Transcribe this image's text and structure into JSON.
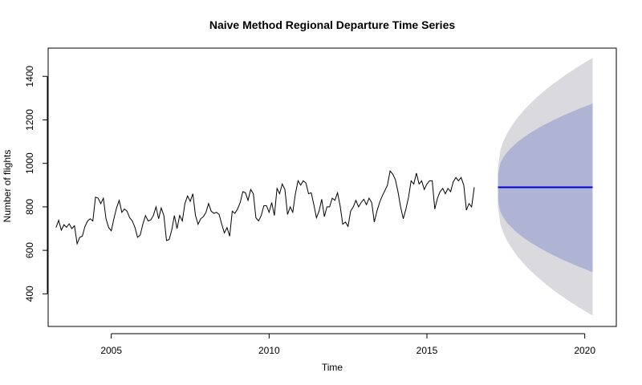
{
  "chart_data": {
    "type": "line",
    "title": "Naive Method Regional Departure Time Series",
    "xlabel": "Time",
    "ylabel": "Number of flights",
    "xlim": [
      2003.0,
      2021.0
    ],
    "ylim": [
      250,
      1530
    ],
    "x_ticks": [
      2005,
      2010,
      2015,
      2020
    ],
    "y_ticks": [
      400,
      600,
      800,
      1000,
      1200,
      1400
    ],
    "grid": false,
    "legend": "none",
    "series": [
      {
        "kind": "observed",
        "color": "#000000",
        "start": 2003.25,
        "step": 0.0833333,
        "values": [
          705,
          738,
          693,
          718,
          706,
          722,
          700,
          713,
          630,
          660,
          665,
          710,
          735,
          745,
          735,
          845,
          840,
          815,
          840,
          745,
          705,
          690,
          745,
          795,
          830,
          775,
          790,
          780,
          750,
          735,
          705,
          660,
          670,
          720,
          760,
          735,
          740,
          760,
          800,
          745,
          795,
          760,
          645,
          650,
          695,
          760,
          700,
          760,
          735,
          815,
          850,
          825,
          860,
          760,
          720,
          745,
          755,
          775,
          815,
          780,
          770,
          775,
          765,
          720,
          680,
          705,
          665,
          780,
          770,
          790,
          820,
          870,
          865,
          830,
          880,
          860,
          750,
          735,
          760,
          805,
          805,
          775,
          820,
          760,
          885,
          860,
          905,
          880,
          765,
          800,
          775,
          860,
          920,
          900,
          920,
          910,
          860,
          865,
          810,
          750,
          780,
          835,
          755,
          800,
          800,
          840,
          830,
          865,
          805,
          720,
          730,
          710,
          780,
          800,
          830,
          800,
          820,
          835,
          810,
          840,
          820,
          730,
          780,
          820,
          850,
          875,
          900,
          965,
          950,
          925,
          870,
          800,
          745,
          790,
          845,
          920,
          905,
          955,
          905,
          920,
          880,
          905,
          920,
          920,
          790,
          840,
          870,
          885,
          860,
          885,
          870,
          915,
          935,
          920,
          935,
          900,
          785,
          815,
          800,
          890
        ]
      },
      {
        "kind": "point-forecast",
        "color": "#0000cc",
        "start": 2017.25,
        "end": 2020.25,
        "value": 890
      },
      {
        "kind": "95% interval",
        "color": "#d9d9de",
        "start": 2017.25,
        "end": 2020.25,
        "lower": [
          800,
          300
        ],
        "upper": [
          980,
          1485
        ]
      },
      {
        "kind": "80% interval",
        "color": "#b0b4d4",
        "start": 2017.25,
        "end": 2020.25,
        "lower": [
          830,
          500
        ],
        "upper": [
          950,
          1275
        ]
      }
    ]
  }
}
